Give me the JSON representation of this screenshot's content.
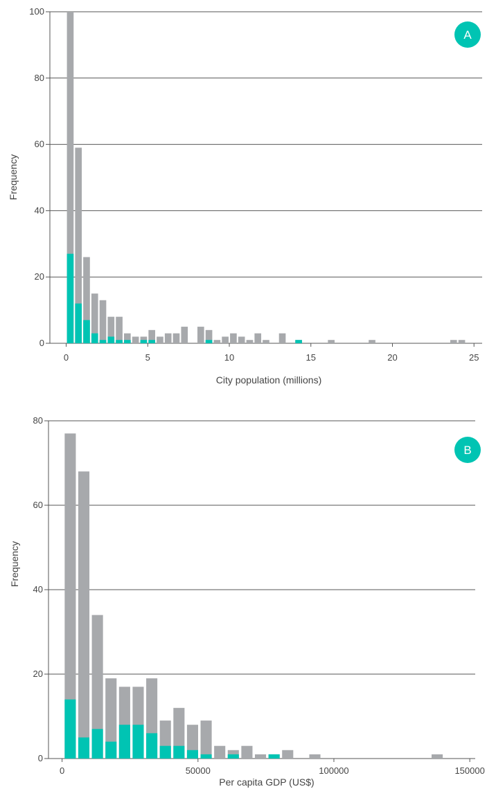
{
  "colors": {
    "gray": "#a7a9ac",
    "teal": "#00c4b3",
    "grid": "#555555",
    "text": "#444444",
    "badge": "#00c4b3"
  },
  "chart_data": [
    {
      "type": "bar",
      "panel": "A",
      "xlabel": "City population (millions)",
      "ylabel": "Frequency",
      "xlim": [
        -1.0,
        25.5
      ],
      "ylim": [
        0,
        100
      ],
      "xticks": [
        "0",
        "5",
        "10",
        "15",
        "20",
        "25"
      ],
      "yticks": [
        "0",
        "20",
        "40",
        "60",
        "80",
        "100"
      ],
      "bin_width": 0.5,
      "series": [
        {
          "key": "total",
          "color": "gray",
          "x": [
            0.25,
            0.75,
            1.25,
            1.75,
            2.25,
            2.75,
            3.25,
            3.75,
            4.25,
            4.75,
            5.25,
            5.75,
            6.25,
            6.75,
            7.25,
            8.25,
            8.75,
            9.25,
            9.75,
            10.25,
            10.75,
            11.25,
            11.75,
            12.25,
            13.25,
            14.25,
            16.25,
            18.75,
            23.75,
            24.25
          ],
          "values": [
            100,
            59,
            26,
            15,
            13,
            8,
            8,
            3,
            2,
            2,
            4,
            2,
            3,
            3,
            5,
            5,
            4,
            1,
            2,
            3,
            2,
            1,
            3,
            1,
            3,
            1,
            1,
            1,
            1,
            1
          ]
        },
        {
          "key": "highlighted",
          "color": "teal",
          "x": [
            0.25,
            0.75,
            1.25,
            1.75,
            2.25,
            2.75,
            3.25,
            3.75,
            4.75,
            5.25,
            8.75,
            14.25
          ],
          "values": [
            27,
            12,
            7,
            3,
            1,
            2,
            1,
            1,
            1,
            1,
            1,
            1
          ]
        }
      ]
    },
    {
      "type": "bar",
      "panel": "B",
      "xlabel": "Per capita GDP (US$)",
      "ylabel": "Frequency",
      "xlim": [
        -5000,
        152000
      ],
      "ylim": [
        0,
        80
      ],
      "xticks": [
        "0",
        "50000",
        "100000",
        "150000"
      ],
      "yticks": [
        "0",
        "20",
        "40",
        "60",
        "80"
      ],
      "bin_width": 5000,
      "series": [
        {
          "key": "total",
          "color": "gray",
          "x": [
            3000,
            8000,
            13000,
            18000,
            23000,
            28000,
            33000,
            38000,
            43000,
            48000,
            53000,
            58000,
            63000,
            68000,
            73000,
            78000,
            83000,
            93000,
            138000
          ],
          "values": [
            77,
            68,
            34,
            19,
            17,
            17,
            19,
            9,
            12,
            8,
            9,
            3,
            2,
            3,
            1,
            1,
            2,
            1,
            1
          ]
        },
        {
          "key": "highlighted",
          "color": "teal",
          "x": [
            3000,
            8000,
            13000,
            18000,
            23000,
            28000,
            33000,
            38000,
            43000,
            48000,
            53000,
            63000,
            78000
          ],
          "values": [
            14,
            5,
            7,
            4,
            8,
            8,
            6,
            3,
            3,
            2,
            1,
            1,
            1
          ]
        }
      ]
    }
  ]
}
